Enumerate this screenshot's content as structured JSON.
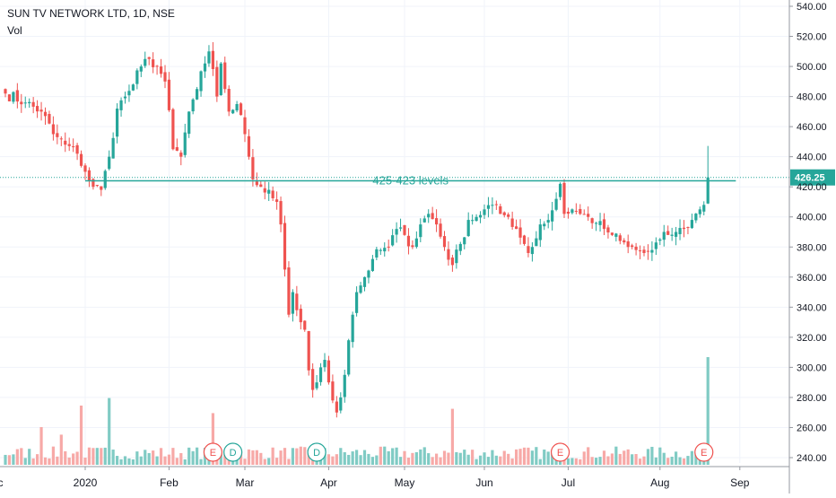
{
  "header": {
    "symbol_title": "SUN TV NETWORK LTD, 1D, NSE",
    "volume_label": "Vol"
  },
  "colors": {
    "up": "#26a69a",
    "down": "#ef5350",
    "grid": "#f0f3fa",
    "axis_text": "#131722",
    "level_line": "#26a69a",
    "last_price_bg": "#26a69a"
  },
  "chart_data": {
    "type": "candlestick",
    "symbol": "SUN TV NETWORK LTD",
    "interval": "1D",
    "exchange": "NSE",
    "ylim": [
      235,
      545
    ],
    "y_ticks": [
      "240.00",
      "260.00",
      "280.00",
      "300.00",
      "320.00",
      "340.00",
      "360.00",
      "380.00",
      "400.00",
      "420.00",
      "440.00",
      "460.00",
      "480.00",
      "500.00",
      "520.00",
      "540.00"
    ],
    "x_ticks": [
      {
        "label": "ec",
        "bar": -2
      },
      {
        "label": "2020",
        "bar": 20
      },
      {
        "label": "Feb",
        "bar": 41
      },
      {
        "label": "Mar",
        "bar": 60
      },
      {
        "label": "Apr",
        "bar": 81
      },
      {
        "label": "May",
        "bar": 100
      },
      {
        "label": "Jun",
        "bar": 120
      },
      {
        "label": "Jul",
        "bar": 141
      },
      {
        "label": "Aug",
        "bar": 164
      },
      {
        "label": "Sep",
        "bar": 184
      }
    ],
    "last_price": 426.25,
    "annotation": {
      "text": "425-423 levels",
      "level": 424
    },
    "event_markers": [
      {
        "label": "E",
        "kind": "earnings",
        "bar": 52
      },
      {
        "label": "D",
        "kind": "dividend",
        "bar": 57
      },
      {
        "label": "D",
        "kind": "dividend",
        "bar": 78
      },
      {
        "label": "E",
        "kind": "earnings",
        "bar": 139
      },
      {
        "label": "E",
        "kind": "earnings",
        "bar": 175
      }
    ],
    "close_anchors": [
      [
        0,
        482
      ],
      [
        5,
        476
      ],
      [
        9,
        470
      ],
      [
        12,
        455
      ],
      [
        15,
        448
      ],
      [
        18,
        442
      ],
      [
        20,
        430
      ],
      [
        22,
        420
      ],
      [
        24,
        418
      ],
      [
        26,
        440
      ],
      [
        28,
        472
      ],
      [
        30,
        480
      ],
      [
        32,
        488
      ],
      [
        34,
        500
      ],
      [
        36,
        505
      ],
      [
        38,
        500
      ],
      [
        40,
        490
      ],
      [
        42,
        445
      ],
      [
        44,
        440
      ],
      [
        46,
        470
      ],
      [
        48,
        485
      ],
      [
        50,
        502
      ],
      [
        51,
        510
      ],
      [
        53,
        480
      ],
      [
        54,
        502
      ],
      [
        56,
        470
      ],
      [
        58,
        475
      ],
      [
        60,
        455
      ],
      [
        61,
        440
      ],
      [
        62,
        425
      ],
      [
        64,
        420
      ],
      [
        66,
        418
      ],
      [
        68,
        410
      ],
      [
        69,
        395
      ],
      [
        70,
        365
      ],
      [
        71,
        335
      ],
      [
        72,
        350
      ],
      [
        73,
        338
      ],
      [
        74,
        330
      ],
      [
        75,
        325
      ],
      [
        76,
        298
      ],
      [
        77,
        285
      ],
      [
        78,
        290
      ],
      [
        79,
        300
      ],
      [
        80,
        305
      ],
      [
        81,
        290
      ],
      [
        82,
        278
      ],
      [
        83,
        270
      ],
      [
        84,
        280
      ],
      [
        85,
        295
      ],
      [
        86,
        318
      ],
      [
        87,
        335
      ],
      [
        88,
        350
      ],
      [
        90,
        360
      ],
      [
        92,
        372
      ],
      [
        94,
        378
      ],
      [
        96,
        380
      ],
      [
        98,
        392
      ],
      [
        100,
        388
      ],
      [
        102,
        380
      ],
      [
        104,
        395
      ],
      [
        106,
        402
      ],
      [
        108,
        395
      ],
      [
        110,
        380
      ],
      [
        112,
        368
      ],
      [
        114,
        382
      ],
      [
        116,
        398
      ],
      [
        118,
        400
      ],
      [
        120,
        405
      ],
      [
        122,
        408
      ],
      [
        124,
        402
      ],
      [
        126,
        400
      ],
      [
        128,
        392
      ],
      [
        130,
        382
      ],
      [
        131,
        376
      ],
      [
        132,
        380
      ],
      [
        134,
        395
      ],
      [
        136,
        398
      ],
      [
        138,
        412
      ],
      [
        139,
        422
      ],
      [
        140,
        402
      ],
      [
        142,
        405
      ],
      [
        144,
        402
      ],
      [
        146,
        400
      ],
      [
        148,
        396
      ],
      [
        150,
        392
      ],
      [
        152,
        388
      ],
      [
        154,
        384
      ],
      [
        156,
        380
      ],
      [
        158,
        378
      ],
      [
        160,
        376
      ],
      [
        162,
        378
      ],
      [
        164,
        385
      ],
      [
        166,
        388
      ],
      [
        168,
        390
      ],
      [
        170,
        392
      ],
      [
        172,
        398
      ],
      [
        174,
        405
      ],
      [
        175,
        408
      ],
      [
        176,
        426.25
      ]
    ],
    "volume_spikes": [
      {
        "bar": 9,
        "level": 0.35
      },
      {
        "bar": 14,
        "level": 0.28
      },
      {
        "bar": 19,
        "level": 0.55
      },
      {
        "bar": 26,
        "level": 0.62
      },
      {
        "bar": 52,
        "level": 0.48
      },
      {
        "bar": 112,
        "level": 0.52
      },
      {
        "bar": 176,
        "level": 1.0
      }
    ]
  }
}
